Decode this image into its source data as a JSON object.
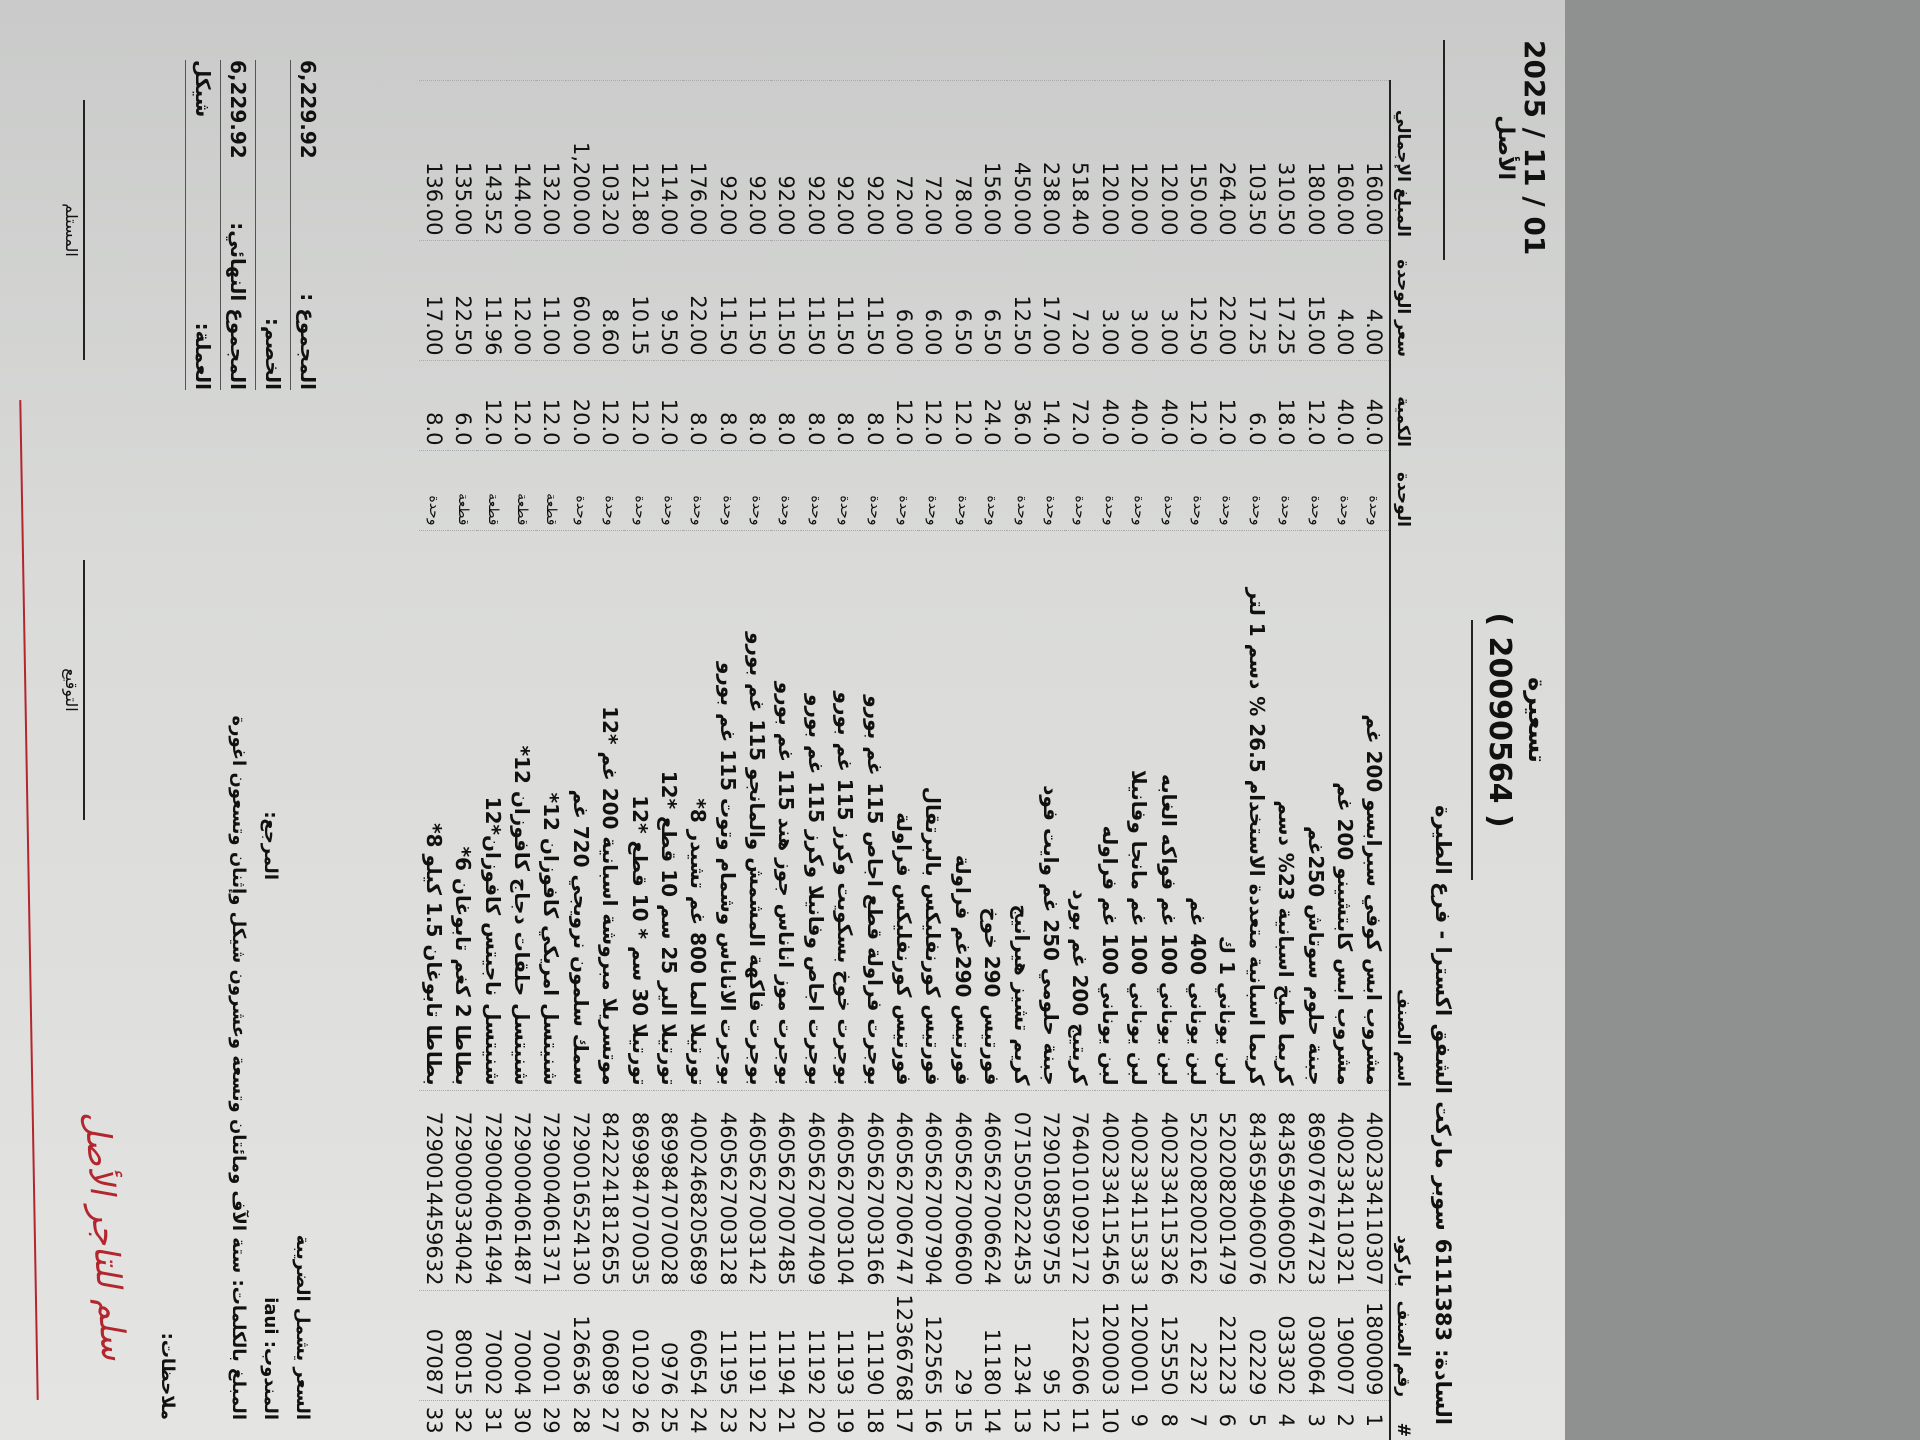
{
  "header": {
    "title": "تسعيرة",
    "number": "( 20090564 )",
    "customer_label": "السادة:",
    "customer_id": "6111383",
    "customer_name": "سوبر ماركت الشفق اكسترا - فرع الطيرة",
    "date": "2025 / 11 / 01",
    "copy": "الأصل"
  },
  "columns": [
    "#",
    "رقم الصنف",
    "باركود",
    "اسم الصنف",
    "الوحدة",
    "الكمية",
    "سعر الوحدة",
    "المبلغ الإجمالي"
  ],
  "rows": [
    [
      "1",
      "1800009",
      "4002334110307",
      "مشروب ابس كوفي سبرابسو 200 غم",
      "وحدة",
      "40.0",
      "4.00",
      "160.00"
    ],
    [
      "2",
      "190007",
      "4002334110321",
      "مشروب ابس كابتشينو 200 غم",
      "وحدة",
      "40.0",
      "4.00",
      "160.00"
    ],
    [
      "3",
      "030064",
      "8690767674723",
      "جبنة حلوم سوتاش 250غم",
      "وحدة",
      "12.0",
      "15.00",
      "180.00"
    ],
    [
      "4",
      "033302",
      "8436594060052",
      "كريما طبخ اسبانية 23% دسم",
      "وحدة",
      "18.0",
      "17.25",
      "310.50"
    ],
    [
      "5",
      "02229",
      "8436594060076",
      "كريما اسبانية متعددة الاستخدام 26.5 % دسم 1 لتر",
      "وحدة",
      "6.0",
      "17.25",
      "103.50"
    ],
    [
      "6",
      "221223",
      "5202082001479",
      "لبن يوناني 1 ك",
      "وحدة",
      "12.0",
      "22.00",
      "264.00"
    ],
    [
      "7",
      "2232",
      "5202082002162",
      "لبن يوناني 400 غم",
      "وحدة",
      "12.0",
      "12.50",
      "150.00"
    ],
    [
      "8",
      "125550",
      "4002334115326",
      "لبن يوناني 100 غم فواكه الغابه",
      "وحدة",
      "40.0",
      "3.00",
      "120.00"
    ],
    [
      "9",
      "1200001",
      "4002334115333",
      "لبن يوناني 100 غم مانجا وفانيلا",
      "وحدة",
      "40.0",
      "3.00",
      "120.00"
    ],
    [
      "10",
      "1200003",
      "4002334115456",
      "لبن يوناني 100 غم فراوله",
      "وحدة",
      "40.0",
      "3.00",
      "120.00"
    ],
    [
      "11",
      "122606",
      "7640101092172",
      "كريتيج 200 غم بورد",
      "وحدة",
      "72.0",
      "7.20",
      "518.40"
    ],
    [
      "12",
      "95",
      "7290108509755",
      "جبنة حلومي 250 غم وايت فود",
      "وحدة",
      "14.0",
      "17.00",
      "238.00"
    ],
    [
      "13",
      "1234",
      "0715050222453",
      "كريم تشيز هيرانيج",
      "وحدة",
      "36.0",
      "12.50",
      "450.00"
    ],
    [
      "14",
      "11180",
      "4605627006624",
      "فورتيس 290 خوخ",
      "وحدة",
      "24.0",
      "6.50",
      "156.00"
    ],
    [
      "15",
      "29",
      "4605627006600",
      "فورتيس 290غم فراولة",
      "وحدة",
      "12.0",
      "6.50",
      "78.00"
    ],
    [
      "16",
      "122565",
      "4605627007904",
      "فورتيس كورنفليكس بالبرتقال",
      "وحدة",
      "12.0",
      "6.00",
      "72.00"
    ],
    [
      "17",
      "12366768",
      "4605627006747",
      "فورتيس كورنفليكس فراولة",
      "وحدة",
      "12.0",
      "6.00",
      "72.00"
    ],
    [
      "18",
      "11190",
      "4605627003166",
      "بوجرت فراولة قطع اجاص 115 غم بورو",
      "وحدة",
      "8.0",
      "11.50",
      "92.00"
    ],
    [
      "19",
      "11193",
      "4605627003104",
      "بوجرت خوخ بسكويت وكرز 115 غم بورو",
      "وحدة",
      "8.0",
      "11.50",
      "92.00"
    ],
    [
      "20",
      "11192",
      "4605627007409",
      "بوجرت اجاص وفانيلا وكرز 115 غم بورو",
      "وحدة",
      "8.0",
      "11.50",
      "92.00"
    ],
    [
      "21",
      "11194",
      "4605627007485",
      "بوجرت موز اناناس جوز هند 115 غم بورو",
      "وحدة",
      "8.0",
      "11.50",
      "92.00"
    ],
    [
      "22",
      "11191",
      "4605627003142",
      "بوجرت فاكهة المشمش والمانجو 115 غم بورو",
      "وحدة",
      "8.0",
      "11.50",
      "92.00"
    ],
    [
      "23",
      "11195",
      "4605627003128",
      "بوجرت الاناناس وشمام وتوت 115 غم بورو",
      "وحدة",
      "8.0",
      "11.50",
      "92.00"
    ],
    [
      "24",
      "60654",
      "4002468205689",
      "تورتيلا الما 800 غم تشيدر 8*",
      "وحدة",
      "8.0",
      "22.00",
      "176.00"
    ],
    [
      "25",
      "0976",
      "8699847070028",
      "تورتيلا الير 25 سم 10 قطع *12",
      "وحدة",
      "12.0",
      "9.50",
      "114.00"
    ],
    [
      "26",
      "01029",
      "8699847070035",
      "تورتيلا 30 سم * 10 قطع *12",
      "وحدة",
      "12.0",
      "10.15",
      "121.80"
    ],
    [
      "27",
      "06089",
      "8422241812655",
      "موتسريلا مبروشة اسبانية 200 غم *12",
      "وحدة",
      "12.0",
      "8.60",
      "103.20"
    ],
    [
      "28",
      "126636",
      "7290016524130",
      "سمك سلمون نرويجي 720 غم",
      "وحدة",
      "20.0",
      "60.00",
      "1,200.00"
    ],
    [
      "29",
      "70001",
      "7290004061371",
      "شنيتسل امريكي كافوزان 12*",
      "قطعة",
      "12.0",
      "11.00",
      "132.00"
    ],
    [
      "30",
      "70004",
      "7290004061487",
      "شنيتسل حلقات دجاج كافوزان 12*",
      "قطعة",
      "12.0",
      "12.00",
      "144.00"
    ],
    [
      "31",
      "70002",
      "7290004061494",
      "شنيتسل ناجيتس كافوزان*12",
      "قطعة",
      "12.0",
      "11.96",
      "143.52"
    ],
    [
      "32",
      "80015",
      "7290000334042",
      "بطاطا 2 كغم تابوغان 6*",
      "قطعة",
      "6.0",
      "22.50",
      "135.00"
    ],
    [
      "33",
      "07087",
      "7290014459632",
      "بطاطا تابوغان 1.5 كيلو 8*",
      "وحدة",
      "8.0",
      "17.00",
      "136.00"
    ]
  ],
  "totals": {
    "sum_label": "المجموع :",
    "sum": "6,229.92",
    "discount_label": "الخصم:",
    "discount": "",
    "final_label": "المجموع النهائي:",
    "final": "6,229.92",
    "currency_label": "العملة:",
    "currency": "شيكل"
  },
  "footer": {
    "tax_note": "السعر يشمل الضريبة",
    "rep_label": "المندوب:",
    "rep": "iaui",
    "ref_label": "المرجع:",
    "words_label": "المبلغ بالكلمات:",
    "words": "ستة الآف ومائتان وتسعة وعشرون شيكل وإثنان وتسعون اغورة",
    "notes_label": "ملاحظات:",
    "handwritten_note": "سلم للتاجر الأصل",
    "receiver_label": "المستلم",
    "signature_label": "التوقيع"
  },
  "colors": {
    "ink": "#111111",
    "handwriting_red": "#b3262e",
    "pen_blue": "#3b2fc9"
  }
}
